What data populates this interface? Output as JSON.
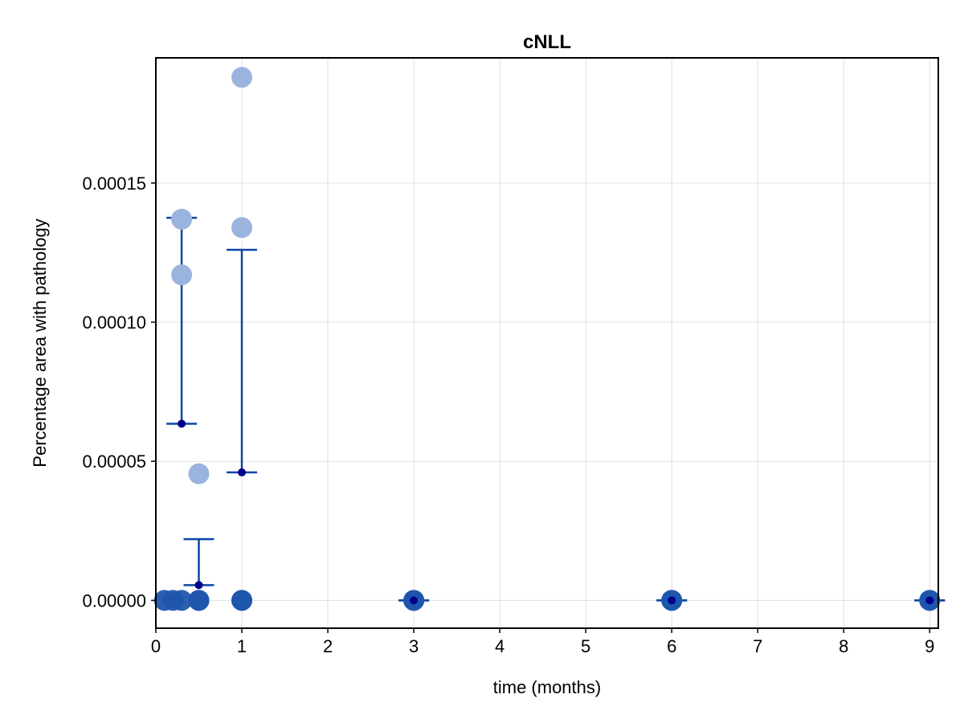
{
  "chart_data": {
    "type": "scatter",
    "title": "cNLL",
    "xlabel": "time (months)",
    "ylabel": "Percentage area with pathology",
    "xlim": [
      0,
      9.1
    ],
    "ylim": [
      -1e-05,
      0.000195
    ],
    "x_ticks": [
      0,
      1,
      2,
      3,
      4,
      5,
      6,
      7,
      8,
      9
    ],
    "x_tick_labels": [
      "0",
      "1",
      "2",
      "3",
      "4",
      "5",
      "6",
      "7",
      "8",
      "9"
    ],
    "y_ticks": [
      0,
      5e-05,
      0.0001,
      0.00015
    ],
    "y_tick_labels": [
      "0.00000",
      "0.00005",
      "0.00010",
      "0.00015"
    ],
    "grid": true,
    "colors": {
      "individual_faded": "#9bb4de",
      "individual_zero": "#1f55ad",
      "errorbar": "#0a46a5",
      "mean": "#00008b"
    },
    "individual_points": [
      {
        "x": 0.1,
        "y": 0
      },
      {
        "x": 0.2,
        "y": 0
      },
      {
        "x": 0.3,
        "y": 0
      },
      {
        "x": 0.3,
        "y": 0.000137
      },
      {
        "x": 0.3,
        "y": 0.000117
      },
      {
        "x": 0.5,
        "y": 0
      },
      {
        "x": 0.5,
        "y": 0
      },
      {
        "x": 0.5,
        "y": 4.55e-05
      },
      {
        "x": 1,
        "y": 0
      },
      {
        "x": 1,
        "y": 0
      },
      {
        "x": 1,
        "y": 0.000188
      },
      {
        "x": 1,
        "y": 0.000134
      },
      {
        "x": 3,
        "y": 0
      },
      {
        "x": 3,
        "y": 0
      },
      {
        "x": 6,
        "y": 0
      },
      {
        "x": 6,
        "y": 0
      },
      {
        "x": 9,
        "y": 0
      },
      {
        "x": 9,
        "y": 0
      }
    ],
    "summary": [
      {
        "x": 0.3,
        "mean": 6.35e-05,
        "lower": 6.35e-05,
        "upper": 0.0001375
      },
      {
        "x": 0.5,
        "mean": 5.5e-06,
        "lower": 5.5e-06,
        "upper": 2.2e-05
      },
      {
        "x": 1,
        "mean": 4.6e-05,
        "lower": 4.6e-05,
        "upper": 0.000126
      },
      {
        "x": 3,
        "mean": 0,
        "lower": 0,
        "upper": 0
      },
      {
        "x": 6,
        "mean": 0,
        "lower": 0,
        "upper": 0
      },
      {
        "x": 9,
        "mean": 0,
        "lower": 0,
        "upper": 0
      }
    ]
  }
}
